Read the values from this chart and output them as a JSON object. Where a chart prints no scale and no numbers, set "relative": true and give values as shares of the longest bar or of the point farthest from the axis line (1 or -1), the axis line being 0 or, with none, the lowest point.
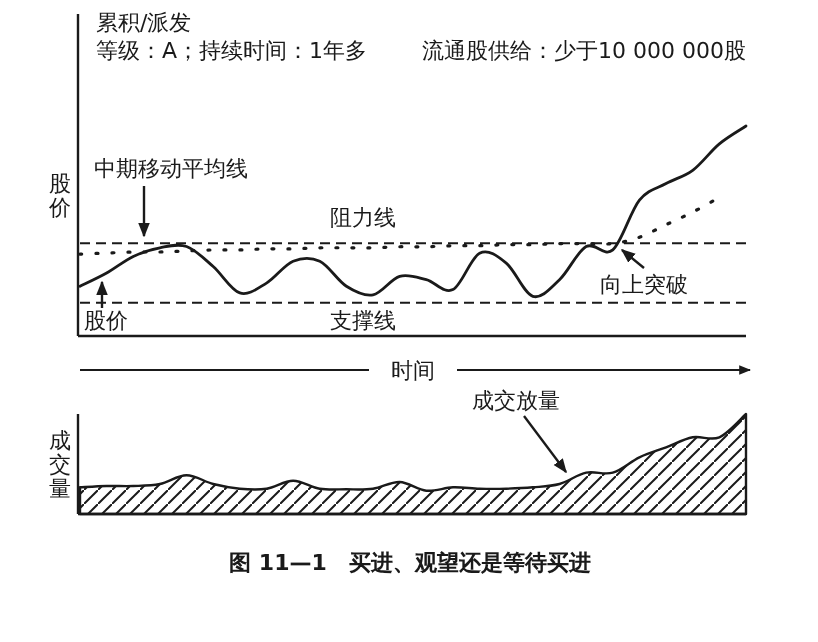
{
  "chart_data": [
    {
      "type": "line",
      "relative": true,
      "title": "累积/派发",
      "subtitle": "等级：A；持续时间：1年多",
      "ylabel": "股价",
      "xlabel": "时间",
      "categories": [
        null,
        null,
        null,
        null,
        null,
        null,
        null,
        null,
        null,
        null,
        null,
        null,
        null,
        null,
        null,
        null,
        null,
        null,
        null,
        null,
        null,
        null,
        null,
        null,
        null,
        null
      ],
      "series": [
        {
          "color": "#1a1a1a",
          "line_style": "solid",
          "values": [
            0.237,
            0.3,
            0.379,
            0.42,
            0.426,
            0.331,
            0.205,
            0.252,
            0.356,
            0.356,
            0.237,
            0.196,
            0.284,
            0.268,
            0.221,
            0.394,
            0.347,
            0.189,
            0.268,
            0.426,
            0.41,
            0.647,
            0.726,
            0.789,
            0.915,
            1.0
          ]
        },
        {
          "color": "#1a1a1a",
          "line_style": "dotted",
          "values": [
            0.39,
            0.395,
            0.4,
            0.4,
            0.405,
            0.41,
            0.41,
            0.415,
            0.415,
            0.42,
            0.42,
            0.42,
            0.425,
            0.425,
            0.43,
            0.43,
            0.435,
            0.435,
            0.44,
            0.44,
            0.44,
            0.47,
            0.53,
            0.59,
            0.66,
            null
          ]
        }
      ],
      "ref_lines": [
        {
          "axis": "y",
          "value": 0.442,
          "label": "阻力线",
          "line_style": "dashed",
          "color": "#1a1a1a"
        },
        {
          "axis": "y",
          "value": 0.158,
          "label": "支撑线",
          "line_style": "dashed",
          "color": "#1a1a1a"
        }
      ],
      "annotations": [
        "流通股供给：少于10 000 000股",
        "中期移动平均线",
        "股价",
        "向上突破"
      ]
    },
    {
      "type": "area",
      "relative": true,
      "ylabel": "成交量",
      "categories": [
        null,
        null,
        null,
        null,
        null,
        null,
        null,
        null,
        null,
        null,
        null,
        null,
        null,
        null,
        null,
        null,
        null,
        null,
        null,
        null,
        null,
        null,
        null,
        null,
        null,
        null
      ],
      "series": [
        {
          "color": "#1a1a1a",
          "values": [
            0.267,
            0.28,
            0.28,
            0.3,
            0.387,
            0.3,
            0.253,
            0.253,
            0.333,
            0.253,
            0.247,
            0.253,
            0.32,
            0.233,
            0.267,
            0.253,
            0.253,
            0.267,
            0.3,
            0.413,
            0.413,
            0.567,
            0.667,
            0.767,
            0.767,
            1.0
          ]
        }
      ],
      "annotations": [
        "成交放量",
        "图 11—1　买进、观望还是等待买进"
      ]
    }
  ]
}
